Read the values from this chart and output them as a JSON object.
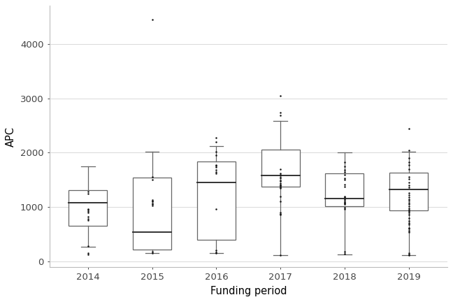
{
  "title": "",
  "xlabel": "Funding period",
  "ylabel": "APC",
  "xlim": [
    0.4,
    6.6
  ],
  "ylim": [
    -100,
    4700
  ],
  "yticks": [
    0,
    1000,
    2000,
    3000,
    4000
  ],
  "xtick_labels": [
    "2014",
    "2015",
    "2016",
    "2017",
    "2018",
    "2019"
  ],
  "background_color": "#ffffff",
  "grid_color": "#d9d9d9",
  "box_edge_color": "#666666",
  "median_color": "#333333",
  "whisker_color": "#666666",
  "outlier_color": "#111111",
  "box_width": 0.6,
  "years": [
    2014,
    2015,
    2016,
    2017,
    2018,
    2019
  ],
  "boxes": [
    {
      "year": 2014,
      "q1": 650,
      "median": 1080,
      "q3": 1310,
      "whislo": 270,
      "whishi": 1750,
      "fliers": [
        130,
        160,
        280,
        760,
        780,
        820,
        900,
        920,
        950,
        970,
        1250,
        1280
      ]
    },
    {
      "year": 2015,
      "q1": 220,
      "median": 540,
      "q3": 1540,
      "whislo": 150,
      "whishi": 2020,
      "fliers": [
        155,
        175,
        1030,
        1060,
        1070,
        1100,
        1110,
        1130,
        1510,
        1550,
        4450
      ]
    },
    {
      "year": 2016,
      "q1": 400,
      "median": 1450,
      "q3": 1840,
      "whislo": 160,
      "whishi": 2120,
      "fliers": [
        155,
        170,
        200,
        960,
        1620,
        1650,
        1680,
        1740,
        1760,
        1780,
        1960,
        2020,
        2200,
        2280
      ]
    },
    {
      "year": 2017,
      "q1": 1380,
      "median": 1580,
      "q3": 2060,
      "whislo": 120,
      "whishi": 2580,
      "fliers": [
        110,
        860,
        880,
        900,
        1100,
        1200,
        1350,
        1360,
        1390,
        1400,
        1420,
        1440,
        1480,
        1490,
        1530,
        1550,
        1600,
        1620,
        1700,
        2680,
        2740,
        3050
      ]
    },
    {
      "year": 2018,
      "q1": 1020,
      "median": 1160,
      "q3": 1620,
      "whislo": 130,
      "whishi": 2010,
      "fliers": [
        140,
        180,
        960,
        990,
        1060,
        1070,
        1080,
        1090,
        1120,
        1140,
        1180,
        1200,
        1380,
        1420,
        1500,
        1530,
        1590,
        1640,
        1680,
        1750,
        1820
      ]
    },
    {
      "year": 2019,
      "q1": 940,
      "median": 1320,
      "q3": 1630,
      "whislo": 110,
      "whishi": 2020,
      "fliers": [
        115,
        130,
        160,
        540,
        570,
        600,
        620,
        680,
        710,
        750,
        800,
        860,
        900,
        920,
        950,
        980,
        1020,
        1050,
        1080,
        1120,
        1150,
        1180,
        1220,
        1260,
        1360,
        1400,
        1450,
        1520,
        1560,
        1700,
        1780,
        1830,
        1900,
        2050,
        2440
      ]
    }
  ]
}
